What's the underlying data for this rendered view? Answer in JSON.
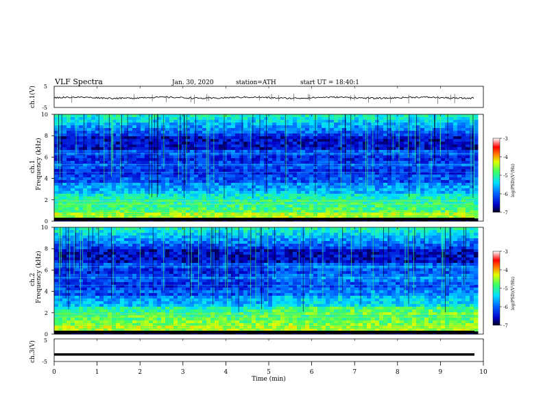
{
  "header": {
    "title": "VLF Spectra",
    "date": "Jan. 30, 2020",
    "station": "station=ATH",
    "start": "start UT = 18:40:1"
  },
  "chart_data": [
    {
      "type": "line",
      "ylabel": "ch.1(V)",
      "ylim": [
        -5,
        5
      ],
      "yticks": [
        "5",
        "-5"
      ],
      "color": "#000000",
      "description_values": "waveform centered near 0 V with small fluctuations"
    },
    {
      "type": "heatmap",
      "ylabel_channel": "ch.1",
      "ylabel": "Frequency (kHz)",
      "ylim": [
        0,
        10
      ],
      "yticks": [
        "0",
        "2",
        "4",
        "6",
        "8",
        "10"
      ],
      "colorbar": {
        "label": "log(PSD)(V²/Hz)",
        "ticks": [
          "-3",
          "-4",
          "-5",
          "-6",
          "-7"
        ],
        "range": [
          -7,
          -3
        ],
        "colors": [
          "#000020",
          "#0000c8",
          "#0060ff",
          "#00e0ff",
          "#40ff60",
          "#e0ff00",
          "#ff8000",
          "#ff0000",
          "#ffffff"
        ]
      }
    },
    {
      "type": "heatmap",
      "ylabel_channel": "ch.2",
      "ylabel": "Frequency (kHz)",
      "ylim": [
        0,
        10
      ],
      "yticks": [
        "0",
        "2",
        "4",
        "6",
        "8",
        "10"
      ],
      "colorbar": {
        "label": "log(PSD)(V²/Hz)",
        "ticks": [
          "-3",
          "-4",
          "-5",
          "-6",
          "-7"
        ],
        "range": [
          -7,
          -3
        ]
      }
    },
    {
      "type": "line",
      "ylabel": "ch.3(V)",
      "ylim": [
        -5,
        5
      ],
      "yticks": [
        "5",
        "-5"
      ],
      "constant_value": -1.9
    }
  ],
  "xaxis": {
    "xlabel": "Time (min)",
    "xlim": [
      0,
      10
    ],
    "ticks": [
      "0",
      "1",
      "2",
      "3",
      "4",
      "5",
      "6",
      "7",
      "8",
      "9",
      "10"
    ]
  }
}
